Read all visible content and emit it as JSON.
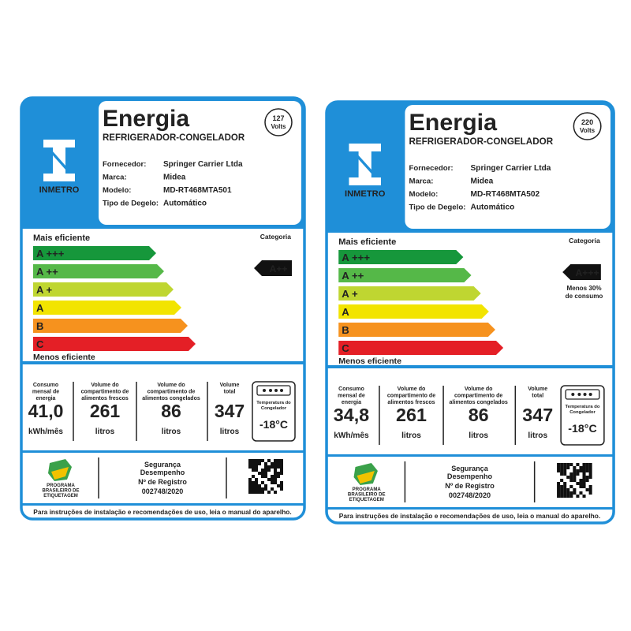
{
  "labels": [
    {
      "title": "Energia",
      "subtitle": "REFRIGERADOR-CONGELADOR",
      "voltage": {
        "value": "127",
        "unit": "Volts"
      },
      "logo": "INMETRO",
      "fields": [
        {
          "label": "Fornecedor:",
          "value": "Springer Carrier Ltda"
        },
        {
          "label": "Marca:",
          "value": "Midea"
        },
        {
          "label": "Modelo:",
          "value": "MD-RT468MTA501"
        },
        {
          "label": "Tipo de Degelo:",
          "value": "Automático"
        }
      ],
      "scale": {
        "top": "Mais eficiente",
        "bottom": "Menos eficiente",
        "category_label": "Categoria",
        "classes": [
          "A +++",
          "A ++",
          "A +",
          "A",
          "B",
          "C"
        ],
        "rating": "A++"
      },
      "stats": [
        {
          "label": [
            "Consumo",
            "mensal de",
            "energia"
          ],
          "value": "41,0",
          "unit": "kWh/mês"
        },
        {
          "label": [
            "Volume do",
            "compartimento de",
            "alimentos frescos"
          ],
          "value": "261",
          "unit": "litros"
        },
        {
          "label": [
            "Volume do",
            "compartimento de",
            "alimentos congelados"
          ],
          "value": "86",
          "unit": "litros"
        },
        {
          "label": [
            "Volume",
            "total"
          ],
          "value": "347",
          "unit": "litros"
        }
      ],
      "freezer": {
        "label": [
          "Temperatura do",
          "Congelador"
        ],
        "value": "-18°C"
      },
      "footer": {
        "program": [
          "PROGRAMA",
          "BRASILEIRO DE",
          "ETIQUETAGEM"
        ],
        "seal": [
          "Segurança",
          "Desempenho"
        ],
        "registry_label": "Nº de Registro",
        "registry": "002748/2020",
        "instructions": "Para instruções de instalação e recomendações de uso, leia o manual do aparelho."
      }
    },
    {
      "title": "Energia",
      "subtitle": "REFRIGERADOR-CONGELADOR",
      "voltage": {
        "value": "220",
        "unit": "Volts"
      },
      "logo": "INMETRO",
      "fields": [
        {
          "label": "Fornecedor:",
          "value": "Springer Carrier Ltda"
        },
        {
          "label": "Marca:",
          "value": "Midea"
        },
        {
          "label": "Modelo:",
          "value": "MD-RT468MTA502"
        },
        {
          "label": "Tipo de Degelo:",
          "value": "Automático"
        }
      ],
      "scale": {
        "top": "Mais eficiente",
        "bottom": "Menos eficiente",
        "category_label": "Categoria",
        "classes": [
          "A +++",
          "A ++",
          "A +",
          "A",
          "B",
          "C"
        ],
        "rating": "A+++",
        "note": [
          "Menos 30%",
          "de consumo"
        ]
      },
      "stats": [
        {
          "label": [
            "Consumo",
            "mensal de",
            "energia"
          ],
          "value": "34,8",
          "unit": "kWh/mês"
        },
        {
          "label": [
            "Volume do",
            "compartimento de",
            "alimentos frescos"
          ],
          "value": "261",
          "unit": "litros"
        },
        {
          "label": [
            "Volume do",
            "compartimento de",
            "alimentos congelados"
          ],
          "value": "86",
          "unit": "litros"
        },
        {
          "label": [
            "Volume",
            "total"
          ],
          "value": "347",
          "unit": "litros"
        }
      ],
      "freezer": {
        "label": [
          "Temperatura do",
          "Congelador"
        ],
        "value": "-18°C"
      },
      "footer": {
        "program": [
          "PROGRAMA",
          "BRASILEIRO DE",
          "ETIQUETAGEM"
        ],
        "seal": [
          "Segurança",
          "Desempenho"
        ],
        "registry_label": "Nº de Registro",
        "registry": "002748/2020",
        "instructions": "Para instruções de instalação e recomendações de uso, leia o manual do aparelho."
      }
    }
  ]
}
